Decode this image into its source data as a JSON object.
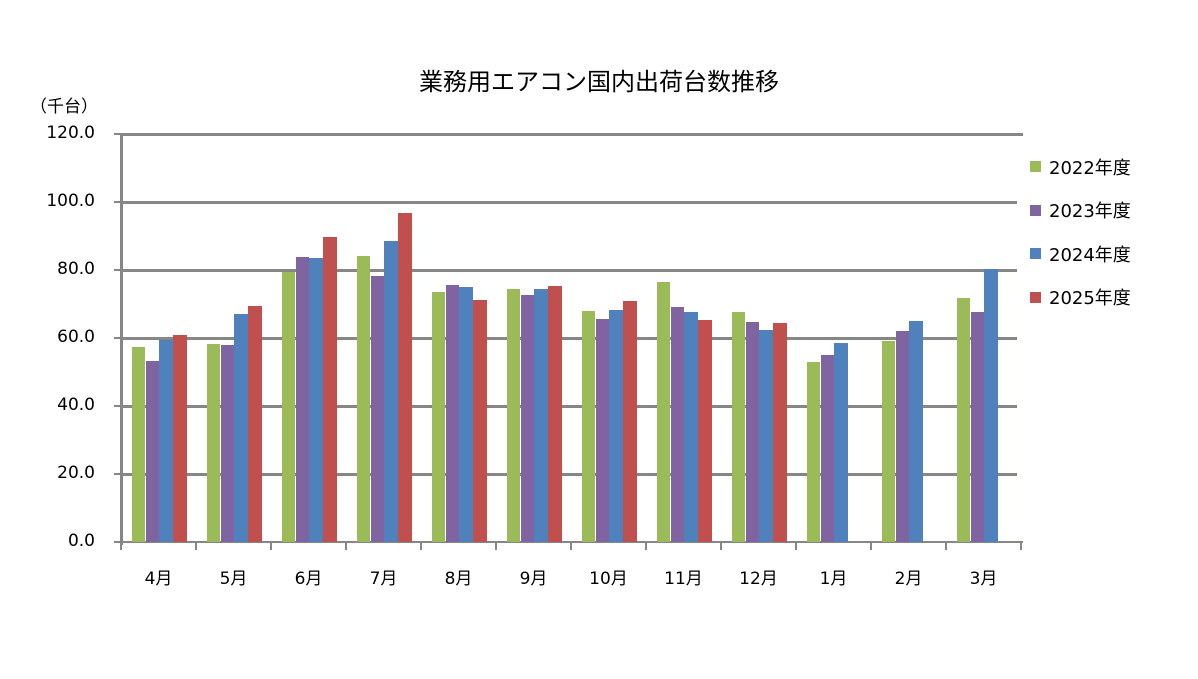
{
  "chart_data": {
    "type": "bar",
    "title": "業務用エアコン国内出荷台数推移",
    "ylabel": "（千台）",
    "xlabel": "",
    "ylim": [
      0,
      120
    ],
    "yticks": [
      "0.0",
      "20.0",
      "40.0",
      "60.0",
      "80.0",
      "100.0",
      "120.0"
    ],
    "grid": true,
    "legend_position": "right",
    "categories": [
      "4月",
      "5月",
      "6月",
      "7月",
      "8月",
      "9月",
      "10月",
      "11月",
      "12月",
      "1月",
      "2月",
      "3月"
    ],
    "series": [
      {
        "name": "2022年度",
        "color": "#9BBB59",
        "values": [
          57.4,
          58.3,
          79.5,
          84.2,
          73.6,
          74.5,
          68.0,
          76.6,
          67.6,
          52.9,
          59.2,
          71.9
        ]
      },
      {
        "name": "2023年度",
        "color": "#8064A2",
        "values": [
          53.3,
          58.0,
          83.9,
          78.3,
          75.7,
          72.7,
          65.7,
          69.2,
          64.7,
          55.0,
          62.1,
          67.7
        ]
      },
      {
        "name": "2024年度",
        "color": "#4F81BD",
        "values": [
          59.4,
          67.1,
          83.6,
          88.6,
          75.1,
          74.5,
          68.3,
          67.7,
          62.4,
          58.6,
          65.1,
          80.3
        ]
      },
      {
        "name": "2025年度",
        "color": "#C0504D",
        "values": [
          61.0,
          69.5,
          89.8,
          96.9,
          71.3,
          75.4,
          71.0,
          65.4,
          64.4,
          null,
          null,
          null
        ]
      }
    ]
  }
}
